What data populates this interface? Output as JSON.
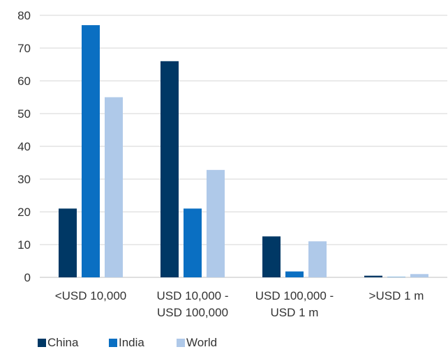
{
  "chart_data": {
    "type": "bar",
    "categories": [
      [
        "<USD 10,000"
      ],
      [
        "USD 10,000 -",
        "USD 100,000"
      ],
      [
        "USD 100,000 -",
        "USD 1 m"
      ],
      [
        ">USD 1 m"
      ]
    ],
    "series": [
      {
        "name": "China",
        "color": "#003865",
        "values": [
          21,
          66,
          12.5,
          0.5
        ]
      },
      {
        "name": "India",
        "color": "#0a6fc2",
        "values": [
          77,
          21,
          1.8,
          0.1
        ]
      },
      {
        "name": "World",
        "color": "#afc9e9",
        "values": [
          55,
          32.8,
          11,
          1
        ]
      }
    ],
    "ylim": [
      0,
      80
    ],
    "yticks": [
      0,
      10,
      20,
      30,
      40,
      50,
      60,
      70,
      80
    ],
    "grid": true,
    "legend": "bottom-left"
  }
}
